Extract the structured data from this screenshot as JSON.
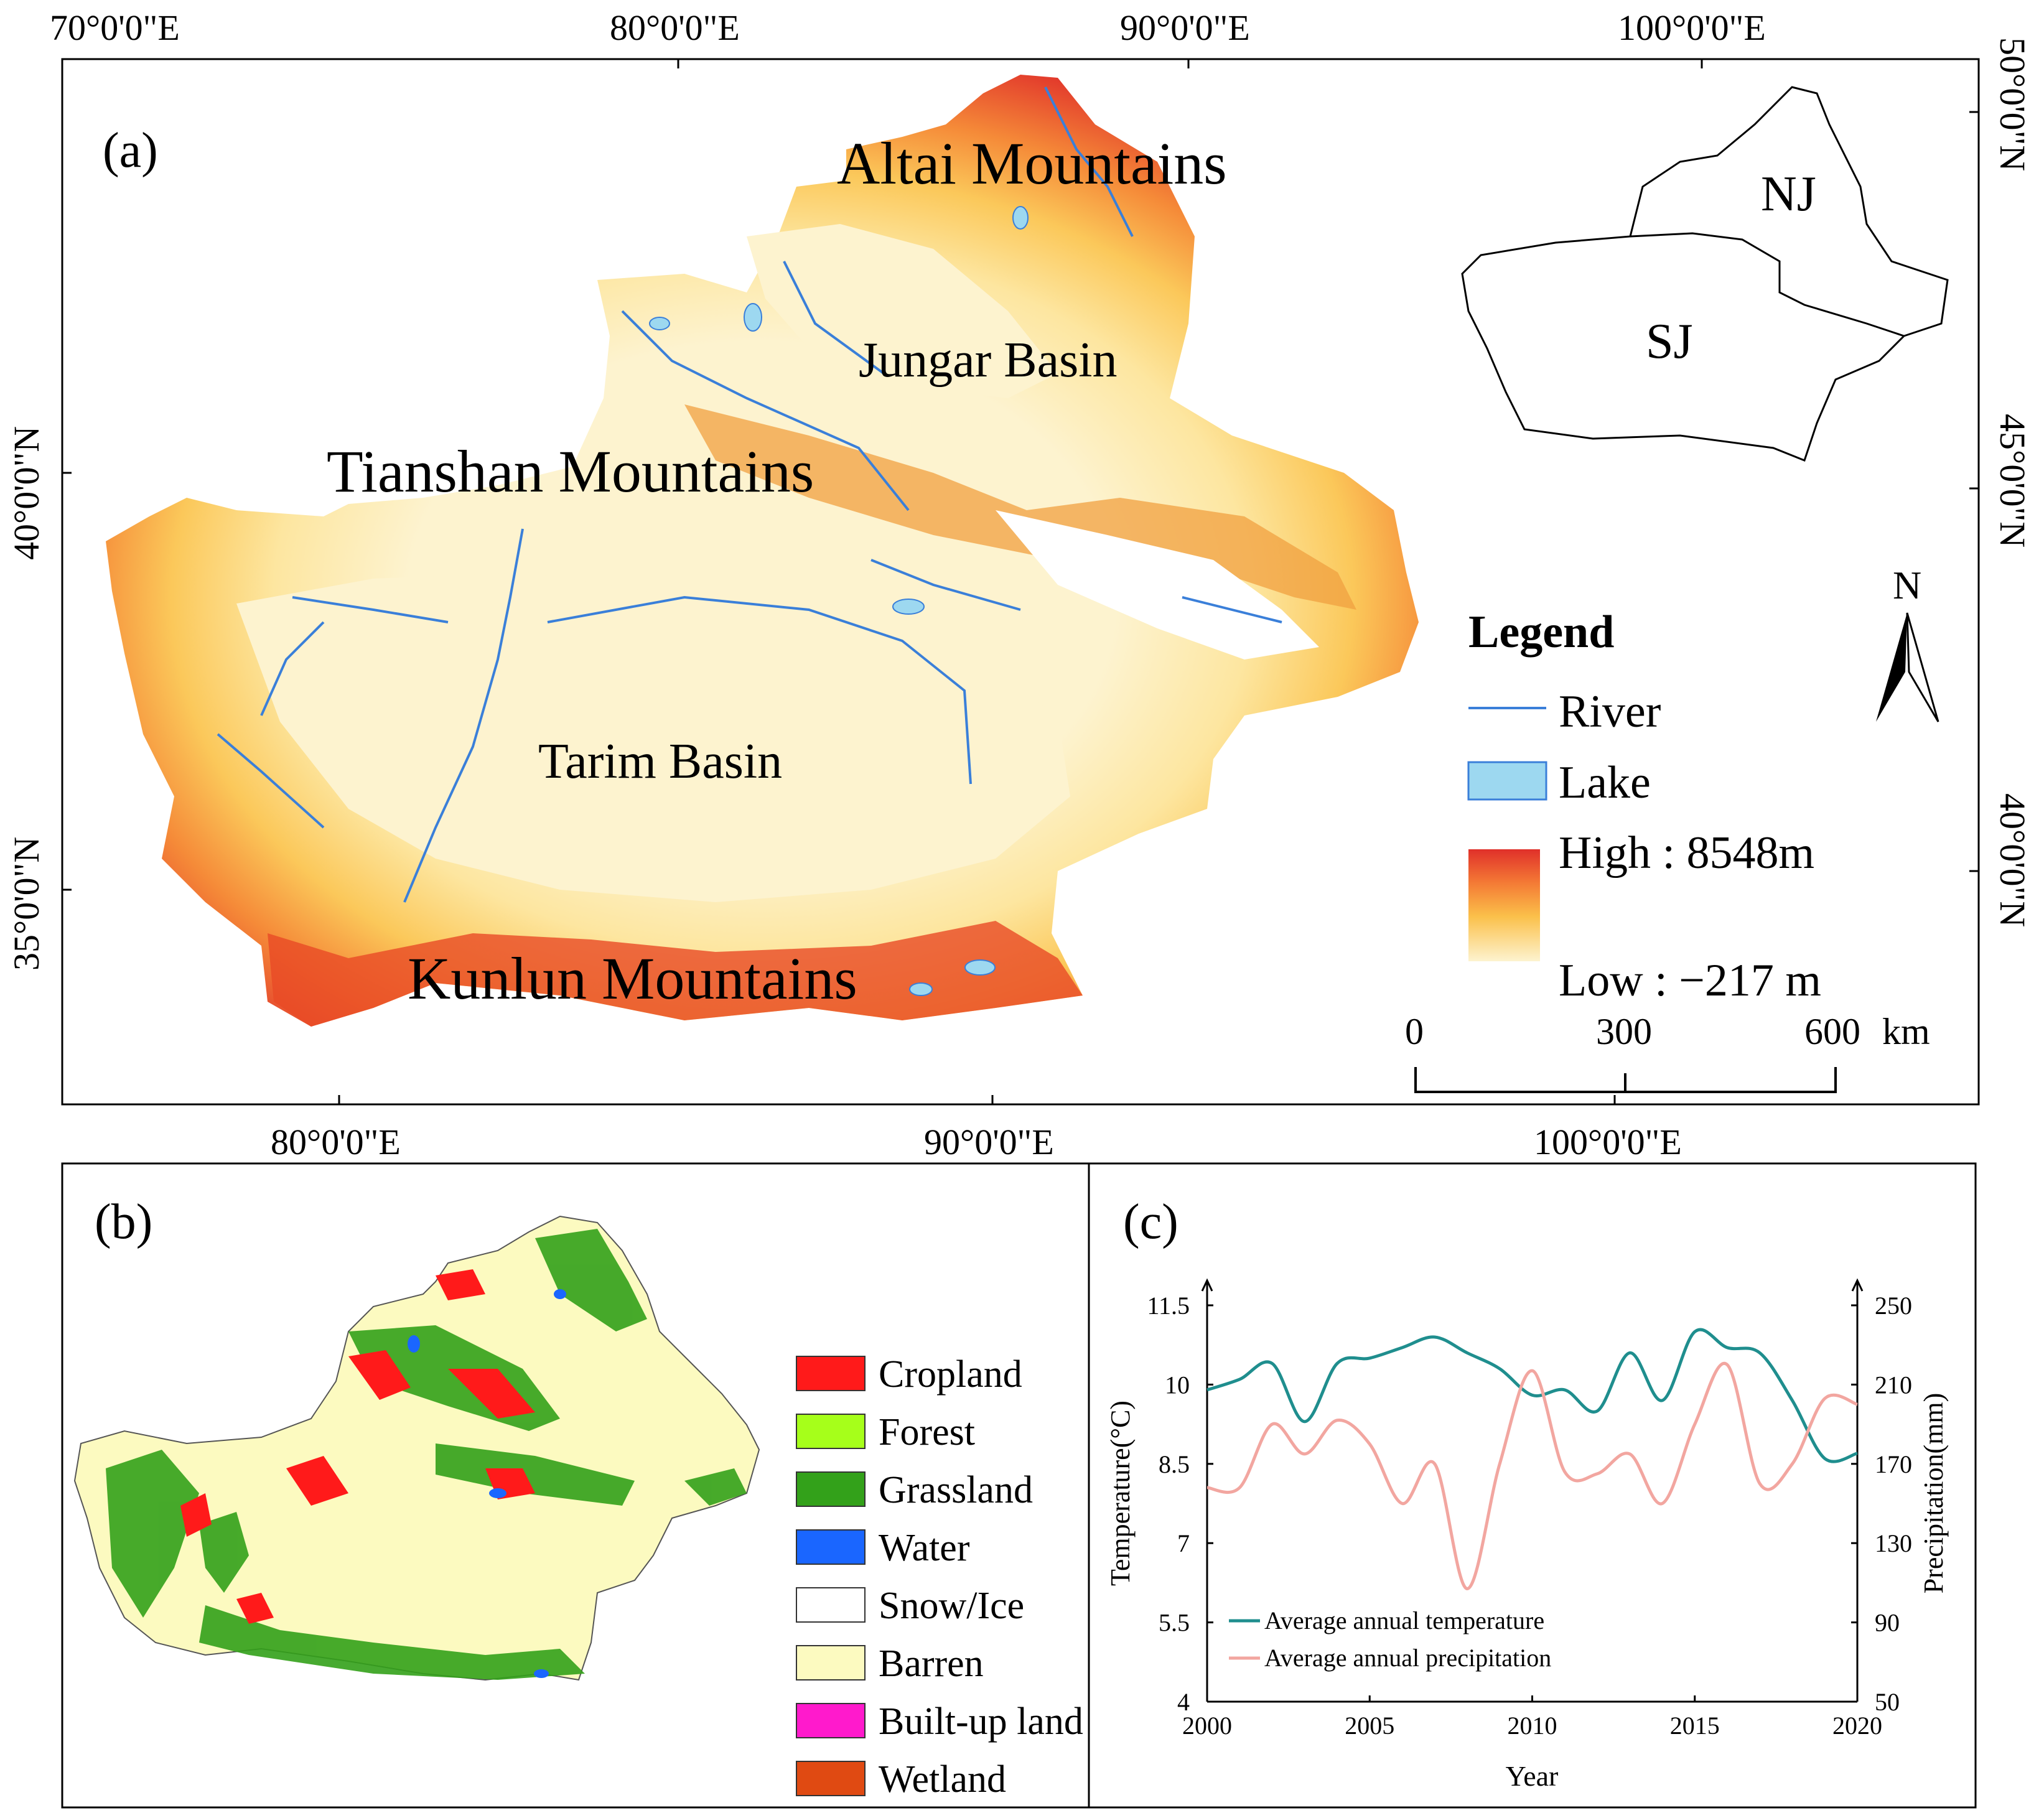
{
  "panel_a": {
    "label": "(a)",
    "top_ticks": [
      "70°0'0\"E",
      "80°0'0\"E",
      "90°0'0\"E",
      "100°0'0\"E"
    ],
    "bottom_ticks": [
      "80°0'0\"E",
      "90°0'0\"E",
      "100°0'0\"E"
    ],
    "left_ticks": [
      "40°0'0\"N",
      "35°0'0\"N"
    ],
    "right_ticks": [
      "50°0'0\"N",
      "45°0'0\"N",
      "40°0'0\"N"
    ],
    "place_labels": {
      "altai": "Altai Mountains",
      "jungar": "Jungar Basin",
      "tianshan": "Tianshan Mountains",
      "tarim": "Tarim Basin",
      "kunlun": "Kunlun Mountains"
    },
    "inset": {
      "north": "NJ",
      "south": "SJ"
    },
    "north_arrow": "N",
    "legend": {
      "title": "Legend",
      "river": "River",
      "lake": "Lake",
      "high": "High : 8548m",
      "low": "Low : −217 m"
    },
    "scale_bar": {
      "ticks": [
        "0",
        "300",
        "600"
      ],
      "unit": "km"
    },
    "colors": {
      "river": "#3a7fd9",
      "lake": "#9dd8f0",
      "ramp_high": "#e0302a",
      "ramp_low": "#fdf3cf"
    }
  },
  "panel_b": {
    "label": "(b)",
    "legend": [
      {
        "label": "Cropland",
        "color": "#ff1a1a"
      },
      {
        "label": "Forest",
        "color": "#a6ff1a"
      },
      {
        "label": "Grassland",
        "color": "#33a11a"
      },
      {
        "label": "Water",
        "color": "#1a66ff"
      },
      {
        "label": "Snow/Ice",
        "color": "#ffffff"
      },
      {
        "label": "Barren",
        "color": "#fcfac0"
      },
      {
        "label": "Built-up land",
        "color": "#ff1acc"
      },
      {
        "label": "Wetland",
        "color": "#e04a12"
      }
    ]
  },
  "panel_c": {
    "label": "(c)",
    "chart_data": {
      "type": "line",
      "xlabel": "Year",
      "ylabel_left": "Temperature(°C)",
      "ylabel_right": "Precipitation(mm)",
      "xlim": [
        2000,
        2020
      ],
      "ylim_left": [
        4,
        11.5
      ],
      "ylim_right": [
        50,
        250
      ],
      "x_ticks": [
        2000,
        2005,
        2010,
        2015,
        2020
      ],
      "y_left_ticks": [
        "4",
        "5.5",
        "7",
        "8.5",
        "10",
        "11.5"
      ],
      "y_right_ticks": [
        "50",
        "90",
        "130",
        "170",
        "210",
        "250"
      ],
      "x": [
        2000,
        2001,
        2002,
        2003,
        2004,
        2005,
        2006,
        2007,
        2008,
        2009,
        2010,
        2011,
        2012,
        2013,
        2014,
        2015,
        2016,
        2017,
        2018,
        2019,
        2020
      ],
      "series": [
        {
          "name": "Average annual temperature",
          "axis": "left",
          "color": "#1f8e8e",
          "values": [
            9.9,
            10.1,
            10.4,
            9.3,
            10.4,
            10.5,
            10.7,
            10.9,
            10.6,
            10.3,
            9.8,
            9.9,
            9.5,
            10.6,
            9.7,
            11.0,
            10.7,
            10.6,
            9.7,
            8.6,
            8.7
          ]
        },
        {
          "name": "Average annual precipitation",
          "axis": "right",
          "color": "#f2a6a0",
          "values": [
            158,
            158,
            190,
            175,
            192,
            180,
            150,
            170,
            107,
            170,
            217,
            166,
            165,
            175,
            150,
            190,
            220,
            160,
            170,
            203,
            200
          ]
        }
      ]
    }
  }
}
